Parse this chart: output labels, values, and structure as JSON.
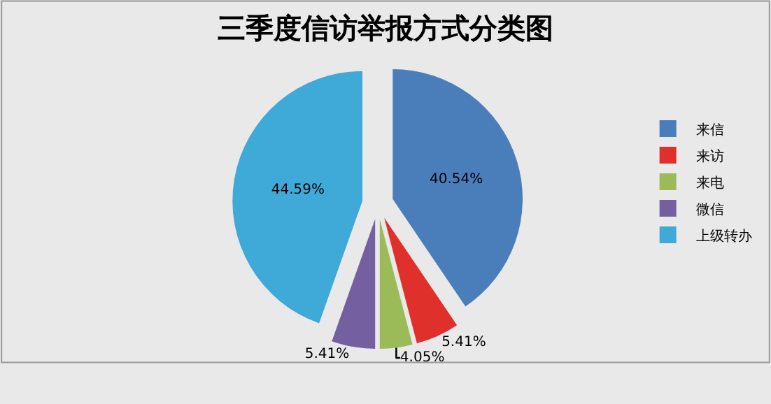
{
  "chart_data": {
    "type": "pie",
    "title": "三季度信访举报方式分类图",
    "categories": [
      "来信",
      "来访",
      "来电",
      "微信",
      "上级转办"
    ],
    "values": [
      40.54,
      5.41,
      4.05,
      5.41,
      44.59
    ],
    "value_labels": [
      "40.54%",
      "5.41%",
      "4.05%",
      "5.41%",
      "44.59%"
    ],
    "colors": [
      "#4a7ebb",
      "#e0302b",
      "#9bbb59",
      "#7460a0",
      "#3fa9d8"
    ],
    "legend": "right"
  }
}
